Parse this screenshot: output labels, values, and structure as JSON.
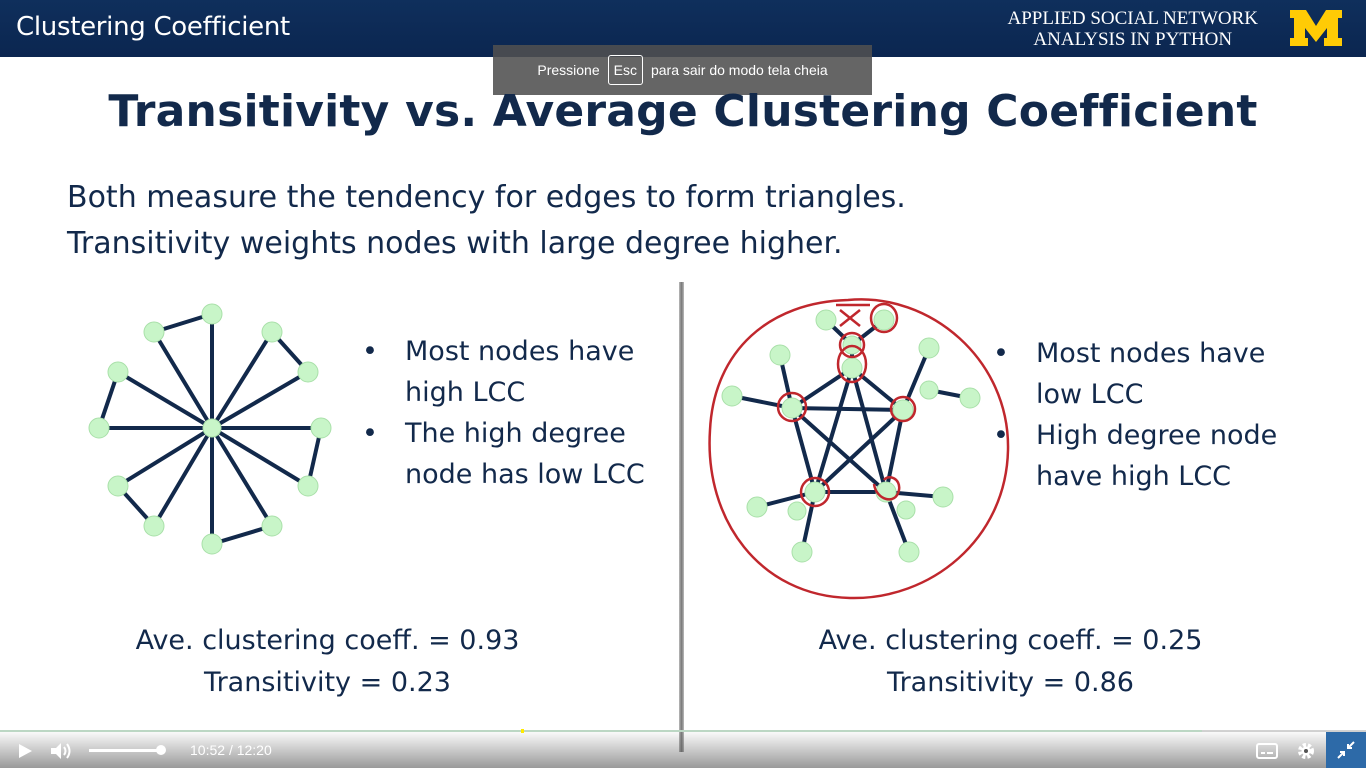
{
  "video": {
    "title": "Clustering Coefficient",
    "course_line1": "APPLIED SOCIAL NETWORK",
    "course_line2": "ANALYSIS IN PYTHON",
    "brand_color": "#ffcb05",
    "header_color": "#0b2650"
  },
  "fullscreen_toast": {
    "before": "Pressione",
    "key": "Esc",
    "after": "para sair do modo tela cheia"
  },
  "slide": {
    "title": "Transitivity vs. Average Clustering Coefficient",
    "line1": "Both measure the tendency for edges to form triangles.",
    "line2": "Transitivity weights nodes with large degree higher.",
    "left": {
      "bullets": [
        {
          "marker": "•",
          "line1": "Most nodes have",
          "line2": "high LCC"
        },
        {
          "marker": "•",
          "line1": "The high degree",
          "line2": "node has low LCC"
        }
      ],
      "avg_cc": "Ave. clustering coeff. = 0.93",
      "transitivity": "Transitivity = 0.23"
    },
    "right": {
      "bullets": [
        {
          "marker": "•",
          "line1": "Most nodes have",
          "line2": "low LCC"
        },
        {
          "marker": "•",
          "line1": "High degree node",
          "line2": "have high LCC"
        }
      ],
      "avg_cc": "Ave. clustering coeff. = 0.25",
      "transitivity": "Transitivity = 0.86"
    }
  },
  "player": {
    "current_time": "10:52",
    "separator": "/",
    "duration": "12:20",
    "progress_fraction": 0.88,
    "volume_fraction": 0.95,
    "icons": [
      "play-icon",
      "volume-icon",
      "captions-icon",
      "settings-icon",
      "exit-fullscreen-icon"
    ]
  }
}
